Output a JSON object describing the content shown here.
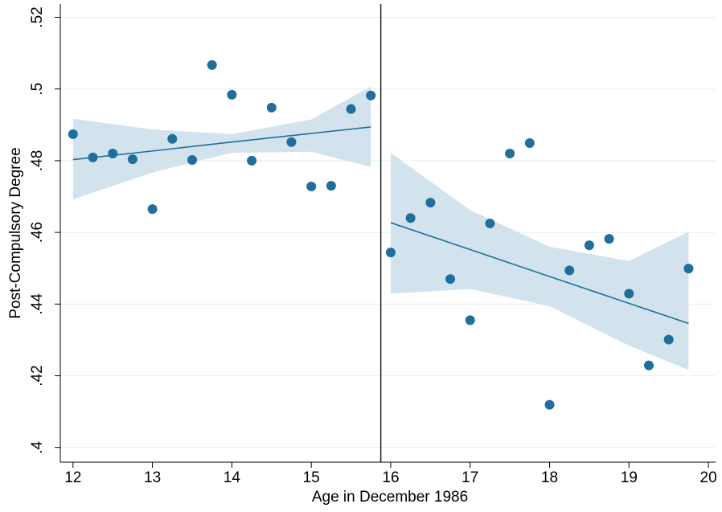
{
  "chart_data": {
    "type": "scatter",
    "x_label": "Age in December 1986",
    "y_label": "Post-Compulsory Degree",
    "xlim": [
      11.84,
      20.09
    ],
    "ylim": [
      0.3959,
      0.5237
    ],
    "xticks": [
      12,
      13,
      14,
      15,
      16,
      17,
      18,
      19,
      20
    ],
    "yticks": [
      {
        "value": 0.4,
        "label": ".4"
      },
      {
        "value": 0.42,
        "label": ".42"
      },
      {
        "value": 0.44,
        "label": ".44"
      },
      {
        "value": 0.46,
        "label": ".46"
      },
      {
        "value": 0.48,
        "label": ".48"
      },
      {
        "value": 0.5,
        "label": ".5"
      },
      {
        "value": 0.52,
        "label": ".52"
      }
    ],
    "grid": true,
    "vline": 15.875,
    "color": "#1f6e9c",
    "band_color": "#d3e3ee",
    "points": {
      "x": [
        12,
        12.25,
        12.5,
        12.75,
        13,
        13.25,
        13.5,
        13.75,
        14,
        14.25,
        14.5,
        14.75,
        15,
        15.25,
        15.5,
        15.75,
        16,
        16.25,
        16.5,
        16.75,
        17,
        17.25,
        17.5,
        17.75,
        18,
        18.25,
        18.5,
        18.75,
        19,
        19.25,
        19.5,
        19.75
      ],
      "values": [
        0.4874,
        0.4809,
        0.482,
        0.4804,
        0.4665,
        0.4861,
        0.4802,
        0.5067,
        0.4984,
        0.48,
        0.4948,
        0.4852,
        0.4728,
        0.473,
        0.4944,
        0.4982,
        0.4544,
        0.464,
        0.4683,
        0.447,
        0.4355,
        0.4625,
        0.482,
        0.4849,
        0.4119,
        0.4494,
        0.4564,
        0.4582,
        0.4429,
        0.4229,
        0.4301,
        0.4499
      ]
    },
    "fits": [
      {
        "x": [
          12,
          13,
          14,
          15,
          15.75
        ],
        "values": [
          0.4803,
          0.4827,
          0.4852,
          0.4876,
          0.4894
        ],
        "upper": [
          0.4917,
          0.4887,
          0.4874,
          0.4915,
          0.5007
        ],
        "lower": [
          0.4692,
          0.4767,
          0.4822,
          0.4825,
          0.4782
        ]
      },
      {
        "x": [
          16,
          17,
          18,
          19,
          19.75
        ],
        "values": [
          0.4627,
          0.4552,
          0.4477,
          0.4402,
          0.4346
        ],
        "upper": [
          0.4822,
          0.4662,
          0.456,
          0.452,
          0.4602
        ],
        "lower": [
          0.4429,
          0.4442,
          0.4394,
          0.4284,
          0.4216
        ]
      }
    ]
  }
}
